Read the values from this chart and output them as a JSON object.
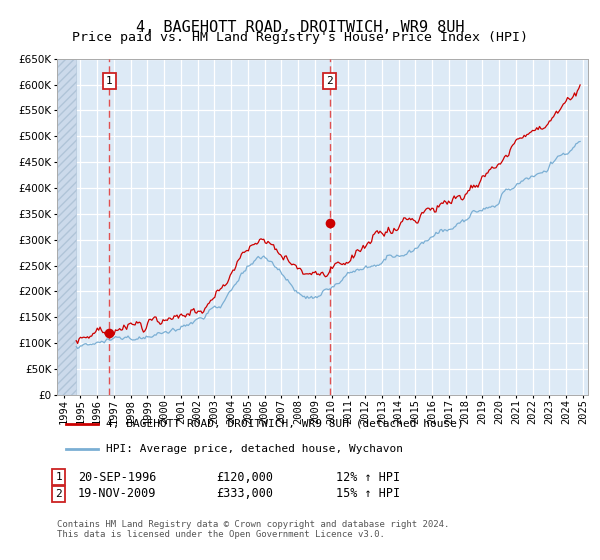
{
  "title": "4, BAGEHOTT ROAD, DROITWICH, WR9 8UH",
  "subtitle": "Price paid vs. HM Land Registry's House Price Index (HPI)",
  "ylim": [
    0,
    650000
  ],
  "yticks": [
    0,
    50000,
    100000,
    150000,
    200000,
    250000,
    300000,
    350000,
    400000,
    450000,
    500000,
    550000,
    600000,
    650000
  ],
  "xlim_start": 1993.6,
  "xlim_end": 2025.3,
  "xticks": [
    1994,
    1995,
    1996,
    1997,
    1998,
    1999,
    2000,
    2001,
    2002,
    2003,
    2004,
    2005,
    2006,
    2007,
    2008,
    2009,
    2010,
    2011,
    2012,
    2013,
    2014,
    2015,
    2016,
    2017,
    2018,
    2019,
    2020,
    2021,
    2022,
    2023,
    2024,
    2025
  ],
  "sale1_x": 1996.72,
  "sale1_y": 120000,
  "sale2_x": 2009.88,
  "sale2_y": 333000,
  "line1_color": "#cc0000",
  "line2_color": "#7bafd4",
  "vline_color": "#e05050",
  "plot_bg_color": "#ddeaf6",
  "grid_color": "#ffffff",
  "legend1_text": "4, BAGEHOTT ROAD, DROITWICH, WR9 8UH (detached house)",
  "legend2_text": "HPI: Average price, detached house, Wychavon",
  "sale1_date": "20-SEP-1996",
  "sale1_price": "£120,000",
  "sale1_hpi": "12% ↑ HPI",
  "sale2_date": "19-NOV-2009",
  "sale2_price": "£333,000",
  "sale2_hpi": "15% ↑ HPI",
  "footnote": "Contains HM Land Registry data © Crown copyright and database right 2024.\nThis data is licensed under the Open Government Licence v3.0."
}
